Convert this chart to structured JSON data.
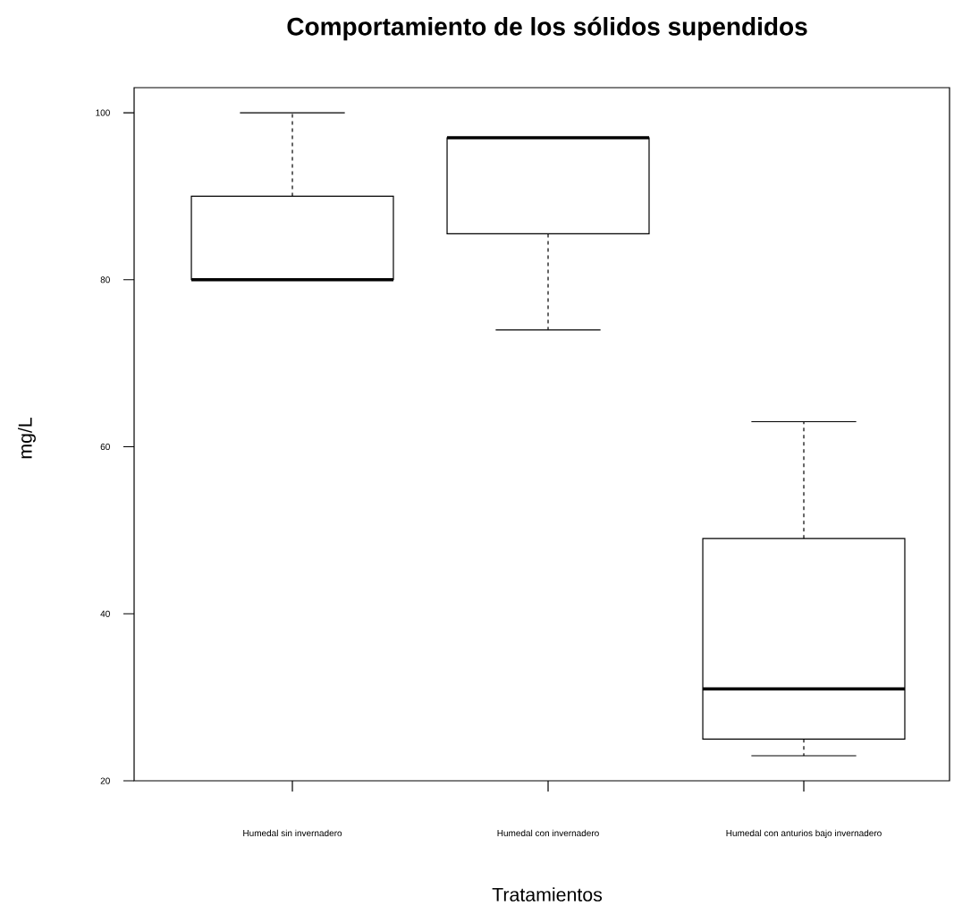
{
  "chart_data": {
    "type": "box",
    "title": "Comportamiento de los sólidos supendidos",
    "xlabel": "Tratamientos",
    "ylabel": "mg/L",
    "categories": [
      "Humedal sin invernadero",
      "Humedal con invernadero",
      "Humedal con anturios bajo invernadero"
    ],
    "boxes": [
      {
        "low": 80,
        "q1": 80,
        "median": 80,
        "q3": 90,
        "high": 100
      },
      {
        "low": 74,
        "q1": 85.5,
        "median": 97,
        "q3": 97,
        "high": 97
      },
      {
        "low": 23,
        "q1": 25,
        "median": 31,
        "q3": 49,
        "high": 63
      }
    ],
    "ylim": [
      20,
      103
    ],
    "yticks": [
      20,
      40,
      60,
      80,
      100
    ]
  }
}
